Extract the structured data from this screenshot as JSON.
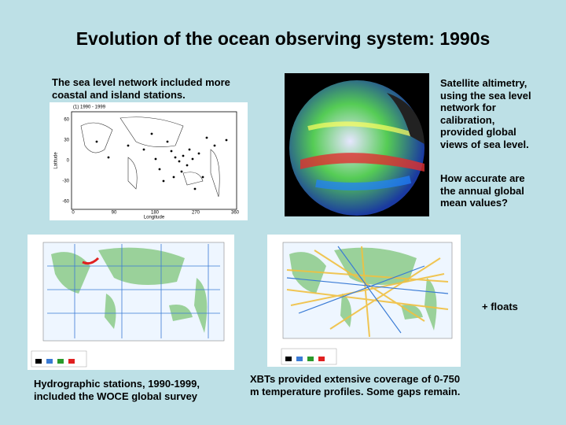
{
  "header": {
    "title": "Evolution of the ocean observing system: 1990s"
  },
  "sea_level": {
    "lines": [
      "The sea level network included more",
      "coastal and island stations."
    ],
    "plot": {
      "panel_label": "(1) 1990 - 1999",
      "y_label": "Latitude",
      "x_label": "Longitude",
      "y_ticks": [
        "60",
        "30",
        "0",
        "-30",
        "-60"
      ],
      "x_ticks": [
        "0",
        "90",
        "180",
        "270",
        "360"
      ]
    }
  },
  "altimetry": {
    "lines": [
      "Satellite altimetry,",
      "using the sea level",
      "network for",
      "calibration,",
      "provided global",
      "views of sea level."
    ]
  },
  "question": {
    "lines": [
      "How accurate are",
      "the annual global",
      "mean values?"
    ]
  },
  "floats": "+ floats",
  "hydrographic": {
    "lines": [
      "Hydrographic stations, 1990-1999,",
      "included the WOCE global survey"
    ]
  },
  "xbt": {
    "lines": [
      "XBTs provided extensive coverage of 0-750",
      "m temperature profiles. Some gaps remain."
    ]
  }
}
